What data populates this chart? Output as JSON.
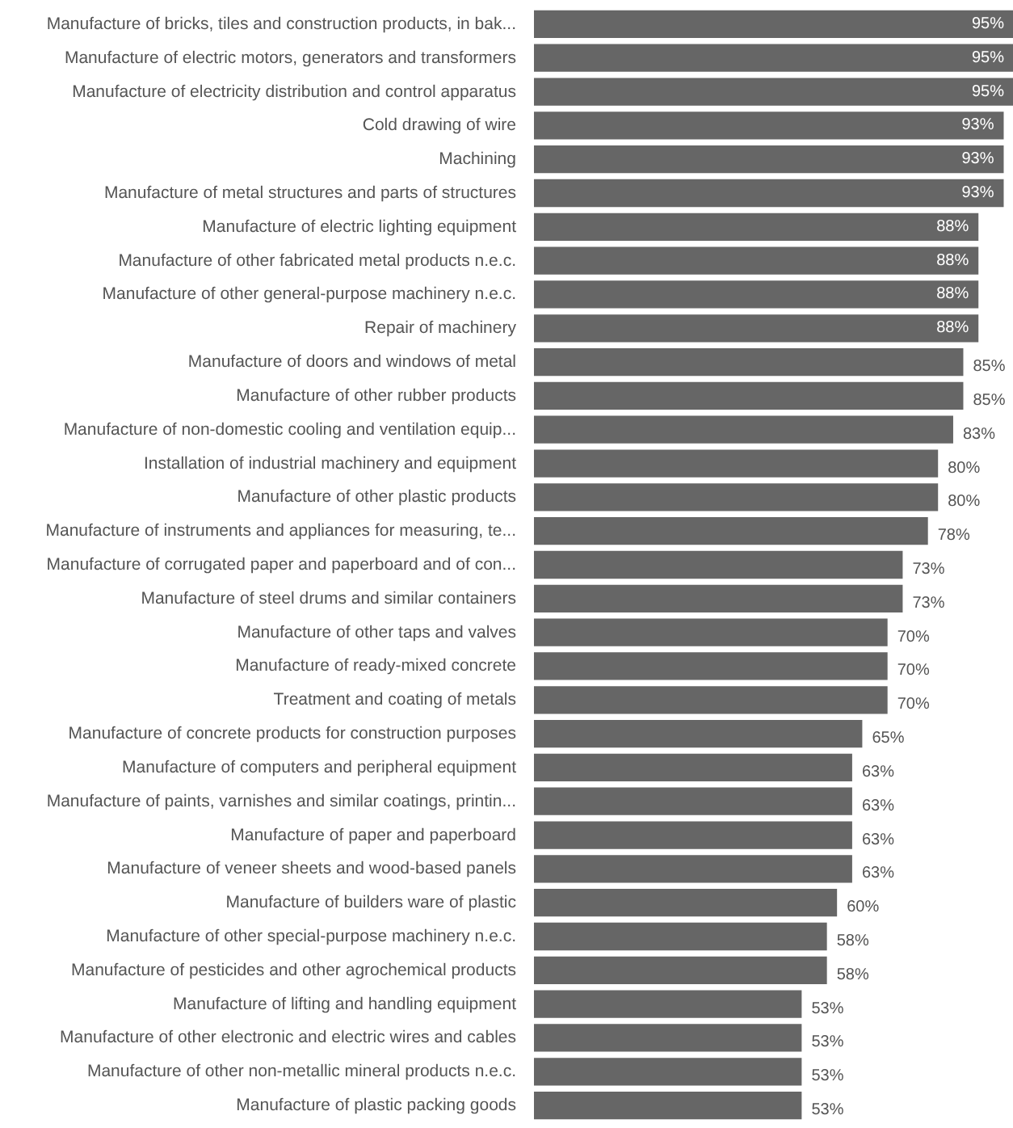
{
  "chart_data": {
    "type": "bar",
    "orientation": "horizontal",
    "grid": false,
    "value_labels": [
      "95%",
      "95%",
      "95%",
      "93%",
      "93%",
      "93%",
      "88%",
      "88%",
      "88%",
      "88%",
      "85%",
      "85%",
      "83%",
      "80%",
      "80%",
      "78%",
      "73%",
      "73%",
      "70%",
      "70%",
      "70%",
      "65%",
      "63%",
      "63%",
      "63%",
      "63%",
      "60%",
      "58%",
      "58%",
      "53%",
      "53%",
      "53%",
      "53%"
    ],
    "color": "#666666",
    "categories": [
      "Manufacture of bricks, tiles and construction products, in bak...",
      "Manufacture of electric motors, generators and transformers",
      "Manufacture of electricity distribution and control apparatus",
      "Cold drawing of wire",
      "Machining",
      "Manufacture of metal structures and parts of structures",
      "Manufacture of electric lighting equipment",
      "Manufacture of other fabricated metal products n.e.c.",
      "Manufacture of other general-purpose machinery n.e.c.",
      "Repair of machinery",
      "Manufacture of doors and windows of metal",
      "Manufacture of other rubber products",
      "Manufacture of non-domestic cooling and ventilation equip...",
      "Installation of industrial machinery and equipment",
      "Manufacture of other plastic products",
      "Manufacture of instruments and appliances for measuring, te...",
      "Manufacture of corrugated paper and paperboard and of con...",
      "Manufacture of steel drums and similar containers",
      "Manufacture of other taps and valves",
      "Manufacture of ready-mixed concrete",
      "Treatment and coating of metals",
      "Manufacture of concrete products for construction purposes",
      "Manufacture of computers and peripheral equipment",
      "Manufacture of paints, varnishes and similar coatings, printin...",
      "Manufacture of paper and paperboard",
      "Manufacture of veneer sheets and wood-based panels",
      "Manufacture of builders ware of plastic",
      "Manufacture of other special-purpose machinery n.e.c.",
      "Manufacture of pesticides and other agrochemical products",
      "Manufacture of lifting and handling equipment",
      "Manufacture of other electronic and electric wires and cables",
      "Manufacture of other non-metallic mineral products n.e.c.",
      "Manufacture of plastic packing goods"
    ],
    "values": [
      95,
      95,
      95,
      93,
      93,
      93,
      88,
      88,
      88,
      88,
      85,
      85,
      83,
      80,
      80,
      78,
      73,
      73,
      70,
      70,
      70,
      65,
      63,
      63,
      63,
      63,
      60,
      58,
      58,
      53,
      53,
      53,
      53
    ]
  }
}
